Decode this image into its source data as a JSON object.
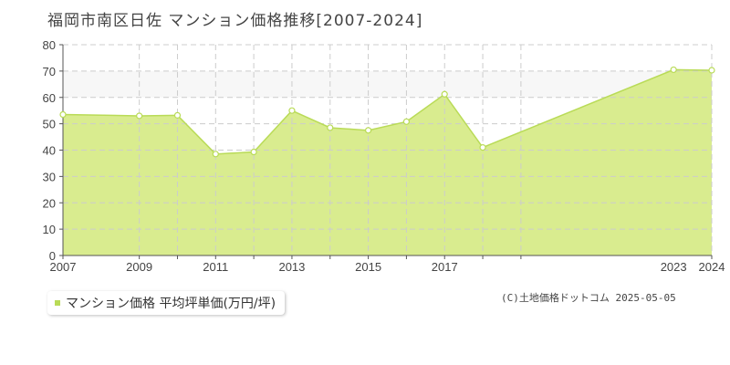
{
  "title": "福岡市南区日佐 マンション価格推移[2007-2024]",
  "legend": {
    "label": "マンション価格 平均坪単価(万円/坪)"
  },
  "copyright": "(C)土地価格ドットコム 2025-05-05",
  "colors": {
    "area_fill": "#d9ec8f",
    "line": "#b9db57",
    "band": "#f7f7f7",
    "grid": "#cccccc",
    "axis": "#555555"
  },
  "chart_data": {
    "type": "area",
    "x": [
      2007,
      2009,
      2010,
      2011,
      2012,
      2013,
      2014,
      2015,
      2016,
      2017,
      2018,
      2023,
      2024
    ],
    "values": [
      53.5,
      53.0,
      53.2,
      38.5,
      39.3,
      55.0,
      48.5,
      47.5,
      50.8,
      61.2,
      41.0,
      70.5,
      70.3
    ],
    "series_name": "マンション価格 平均坪単価(万円/坪)",
    "xlim": [
      2007,
      2024
    ],
    "ylim": [
      0,
      80
    ],
    "y_ticks": [
      0,
      10,
      20,
      30,
      40,
      50,
      60,
      70,
      80
    ],
    "x_tick_labels": [
      "2007",
      "2009",
      "2011",
      "2013",
      "2015",
      "2017",
      "2023",
      "2024"
    ],
    "x_grid": [
      2007,
      2009,
      2010,
      2011,
      2012,
      2013,
      2014,
      2015,
      2016,
      2017,
      2018,
      2019,
      2024
    ],
    "highlight_band": [
      60,
      70
    ],
    "grid": true,
    "legend_position": "bottom-left"
  }
}
